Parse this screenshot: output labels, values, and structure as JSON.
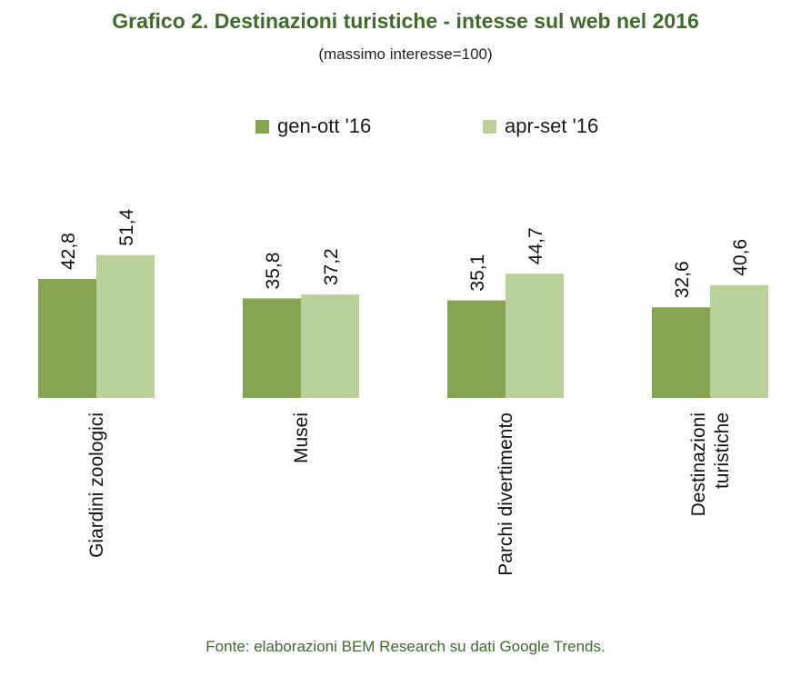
{
  "chart_data": {
    "type": "bar",
    "title": "Grafico 2. Destinazioni turistiche - intesse sul web nel 2016",
    "subtitle": "(massimo interesse=100)",
    "categories": [
      "Giardini zoologici",
      "Musei",
      "Parchi divertimento",
      "Destinazioni turistiche"
    ],
    "category_lines": [
      [
        "Giardini zoologici"
      ],
      [
        "Musei"
      ],
      [
        "Parchi divertimento"
      ],
      [
        "Destinazioni",
        "turistiche"
      ]
    ],
    "series": [
      {
        "name": "gen-ott '16",
        "values": [
          42.8,
          35.8,
          35.1,
          32.6
        ],
        "labels": [
          "42,8",
          "35,8",
          "35,1",
          "32,6"
        ],
        "color": "#86a552"
      },
      {
        "name": "apr-set '16",
        "values": [
          51.4,
          37.2,
          44.7,
          40.6
        ],
        "labels": [
          "51,4",
          "37,2",
          "44,7",
          "40,6"
        ],
        "color": "#b9d09a"
      }
    ],
    "legend_position": "top",
    "grid": false,
    "source": "Fonte: elaborazioni BEM Research su dati Google Trends."
  },
  "colors": {
    "title": "#3d6b2c",
    "source": "#3d6b2c"
  }
}
